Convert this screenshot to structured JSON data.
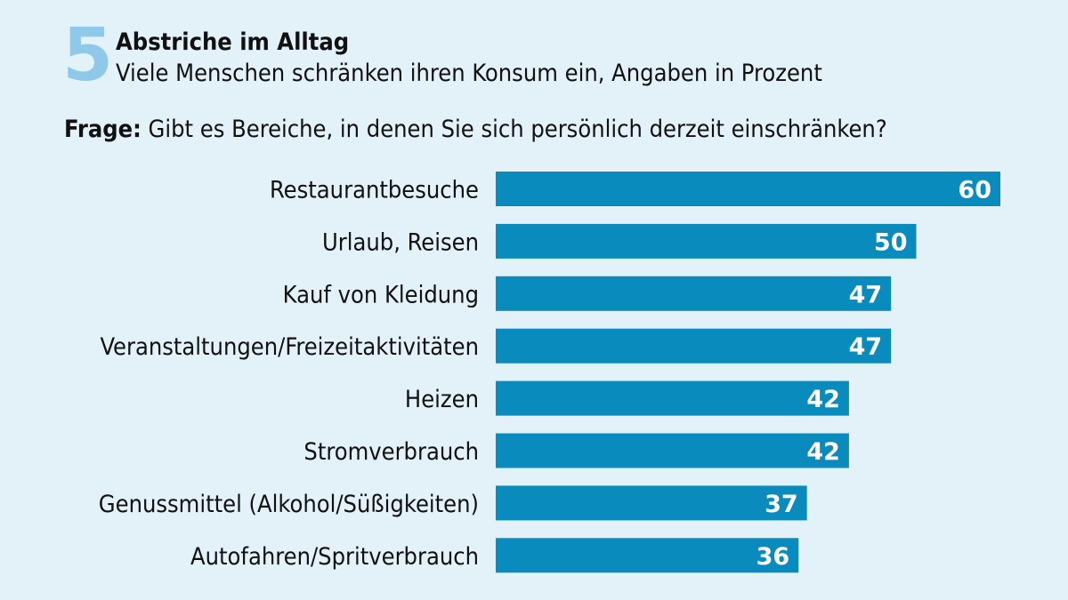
{
  "header": {
    "number": "5",
    "title": "Abstriche im Alltag",
    "subtitle": "Viele Menschen schränken ihren Konsum ein, Angaben in Prozent",
    "question_label": "Frage:",
    "question_text": "Gibt es Bereiche, in denen Sie sich persönlich derzeit einschränken?"
  },
  "colors": {
    "background": "#e3f1f9",
    "bar": "#0a8bbd",
    "number": "#8fc9ea"
  },
  "chart_data": {
    "type": "bar",
    "orientation": "horizontal",
    "unit": "Prozent",
    "categories": [
      "Restaurantbesuche",
      "Urlaub, Reisen",
      "Kauf von Kleidung",
      "Veranstaltungen/Freizeitaktivitäten",
      "Heizen",
      "Stromverbrauch",
      "Genussmittel (Alkohol/Süßigkeiten)",
      "Autofahren/Spritverbrauch"
    ],
    "values": [
      60,
      50,
      47,
      47,
      42,
      42,
      37,
      36
    ],
    "xlim": [
      0,
      60
    ],
    "grid": false,
    "legend": "none",
    "data_labels": "inside-end"
  }
}
